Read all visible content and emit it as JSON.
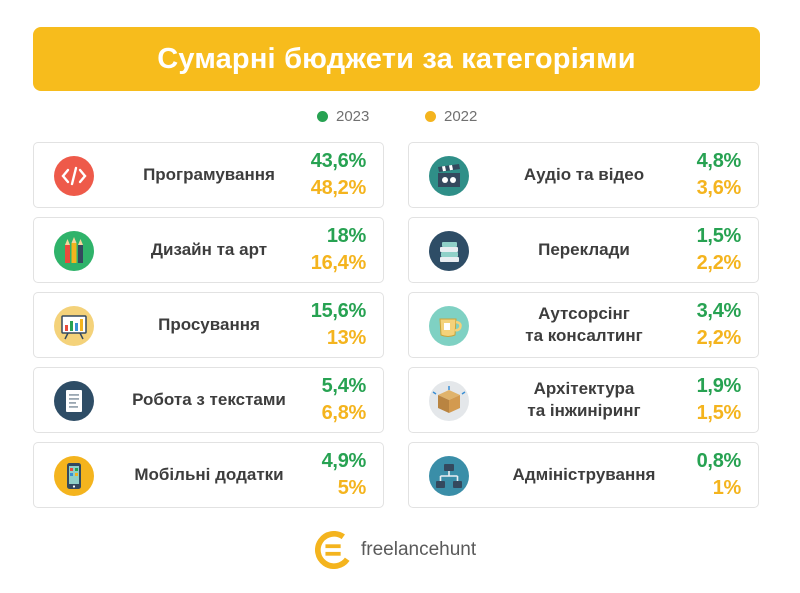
{
  "title": "Сумарні бюджети за категоріями",
  "colors": {
    "banner": "#f7bc1c",
    "c2023": "#27a252",
    "c2022": "#f4b41e"
  },
  "legend": [
    {
      "label": "2023",
      "color": "#27a252"
    },
    {
      "label": "2022",
      "color": "#f4b41e"
    }
  ],
  "chart_data": {
    "type": "table",
    "title": "Сумарні бюджети за категоріями",
    "series_names": [
      "2023",
      "2022"
    ],
    "rows": [
      {
        "category": "Програмування",
        "icon": "code-icon",
        "v2023": "43,6%",
        "v2022": "48,2%"
      },
      {
        "category": "Дизайн та арт",
        "icon": "pencils-icon",
        "v2023": "18%",
        "v2022": "16,4%"
      },
      {
        "category": "Просування",
        "icon": "presentation-board-icon",
        "v2023": "15,6%",
        "v2022": "13%"
      },
      {
        "category": "Робота з текстами",
        "icon": "document-icon",
        "v2023": "5,4%",
        "v2022": "6,8%"
      },
      {
        "category": "Мобільні додатки",
        "icon": "smartphone-icon",
        "v2023": "4,9%",
        "v2022": "5%"
      },
      {
        "category": "Аудіо та відео",
        "icon": "clapperboard-icon",
        "v2023": "4,8%",
        "v2022": "3,6%"
      },
      {
        "category": "Переклади",
        "icon": "books-icon",
        "v2023": "1,5%",
        "v2022": "2,2%"
      },
      {
        "category": "Аутсорсінг\nта консалтинг",
        "icon": "cup-icon",
        "v2023": "3,4%",
        "v2022": "2,2%"
      },
      {
        "category": "Архітектура\nта інжиніринг",
        "icon": "box-icon",
        "v2023": "1,9%",
        "v2022": "1,5%"
      },
      {
        "category": "Адміністрування",
        "icon": "network-icon",
        "v2023": "0,8%",
        "v2022": "1%"
      }
    ]
  },
  "footer": {
    "brand": "freelancehunt",
    "logo_icon": "freelancehunt-logo-icon"
  }
}
